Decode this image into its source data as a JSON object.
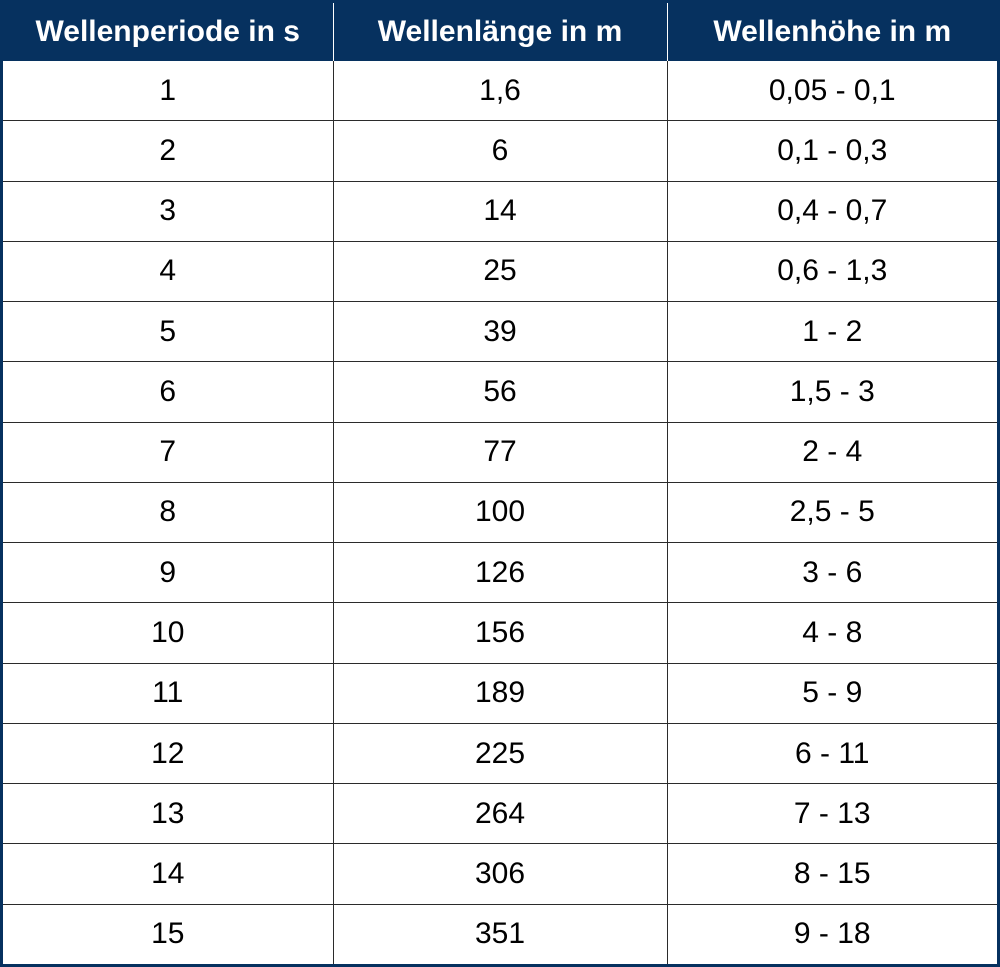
{
  "table": {
    "headers": [
      "Wellenperiode in s",
      "Wellenlänge in m",
      "Wellenhöhe in m"
    ],
    "rows": [
      [
        "1",
        "1,6",
        "0,05 - 0,1"
      ],
      [
        "2",
        "6",
        "0,1 - 0,3"
      ],
      [
        "3",
        "14",
        "0,4 - 0,7"
      ],
      [
        "4",
        "25",
        "0,6 - 1,3"
      ],
      [
        "5",
        "39",
        "1 - 2"
      ],
      [
        "6",
        "56",
        "1,5 - 3"
      ],
      [
        "7",
        "77",
        "2 - 4"
      ],
      [
        "8",
        "100",
        "2,5 - 5"
      ],
      [
        "9",
        "126",
        "3 - 6"
      ],
      [
        "10",
        "156",
        "4 - 8"
      ],
      [
        "11",
        "189",
        "5 - 9"
      ],
      [
        "12",
        "225",
        "6 - 11"
      ],
      [
        "13",
        "264",
        "7 - 13"
      ],
      [
        "14",
        "306",
        "8 - 15"
      ],
      [
        "15",
        "351",
        "9 - 18"
      ]
    ]
  },
  "colors": {
    "header_background": "#06315f",
    "header_text": "#ffffff",
    "grid_lines": "#2b2b2b"
  }
}
